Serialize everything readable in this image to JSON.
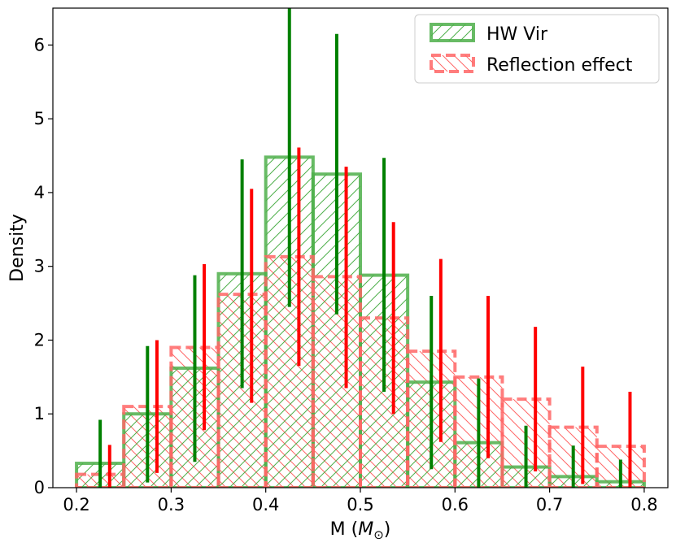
{
  "chart_data": {
    "type": "bar",
    "subtype": "histogram-step-with-error-bars",
    "xlabel": "M (",
    "xlabel_math": "M",
    "xlabel_sub": "⊙",
    "xlabel_close": ")",
    "ylabel": "Density",
    "xlim": [
      0.175,
      0.825
    ],
    "ylim": [
      0,
      6.5
    ],
    "xticks": [
      0.2,
      0.3,
      0.4,
      0.5,
      0.6,
      0.7,
      0.8
    ],
    "xtick_labels": [
      "0.2",
      "0.3",
      "0.4",
      "0.5",
      "0.6",
      "0.7",
      "0.8"
    ],
    "yticks": [
      0,
      1,
      2,
      3,
      4,
      5,
      6
    ],
    "ytick_labels": [
      "0",
      "1",
      "2",
      "3",
      "4",
      "5",
      "6"
    ],
    "grid": false,
    "legend_position": "top-right",
    "bin_edges": [
      0.2,
      0.25,
      0.3,
      0.35,
      0.4,
      0.45,
      0.5,
      0.55,
      0.6,
      0.65,
      0.7,
      0.75,
      0.8
    ],
    "series": [
      {
        "name": "HW Vir",
        "color": "#4daf4a",
        "errorbar_color": "#008000",
        "hatch": "forward-diagonal",
        "line_style": "solid",
        "values": [
          0.33,
          1.0,
          1.62,
          2.9,
          4.48,
          4.25,
          2.88,
          1.43,
          0.61,
          0.28,
          0.15,
          0.08
        ],
        "err_x": [
          0.225,
          0.275,
          0.325,
          0.375,
          0.425,
          0.475,
          0.525,
          0.575,
          0.625,
          0.675,
          0.725,
          0.775
        ],
        "err_low": [
          0.0,
          0.07,
          0.35,
          1.35,
          2.45,
          2.35,
          1.3,
          0.25,
          0.0,
          0.0,
          0.0,
          0.0
        ],
        "err_high": [
          0.92,
          1.92,
          2.88,
          4.45,
          6.5,
          6.15,
          4.47,
          2.6,
          1.48,
          0.84,
          0.57,
          0.38
        ]
      },
      {
        "name": "Reflection effect",
        "color": "#ff6666",
        "errorbar_color": "#ff0000",
        "hatch": "back-diagonal",
        "line_style": "dashed",
        "values": [
          0.18,
          1.1,
          1.9,
          2.62,
          3.13,
          2.86,
          2.3,
          1.85,
          1.5,
          1.2,
          0.82,
          0.56
        ],
        "err_x": [
          0.235,
          0.285,
          0.335,
          0.385,
          0.435,
          0.485,
          0.535,
          0.585,
          0.635,
          0.685,
          0.735,
          0.785
        ],
        "err_low": [
          0.0,
          0.2,
          0.78,
          1.15,
          1.65,
          1.35,
          1.0,
          0.62,
          0.4,
          0.22,
          0.05,
          0.0
        ],
        "err_high": [
          0.58,
          2.0,
          3.03,
          4.05,
          4.61,
          4.35,
          3.6,
          3.1,
          2.6,
          2.18,
          1.64,
          1.3
        ]
      }
    ]
  }
}
